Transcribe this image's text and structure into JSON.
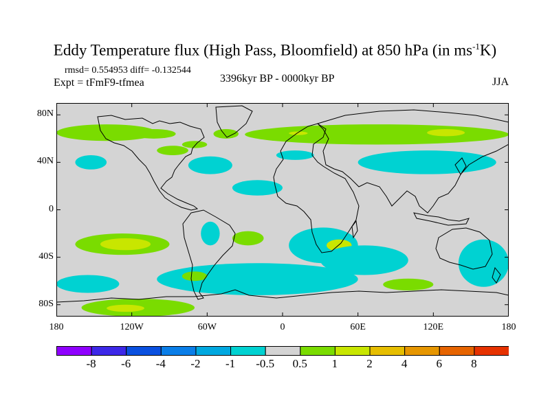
{
  "figure": {
    "title_main": "Eddy Temperature flux (High Pass, Bloomfield) at 850 hPa (in ms",
    "title_sup": "-1",
    "title_end": "K)",
    "stats": "rmsd= 0.554953 diff= -0.132544",
    "experiment": "Expt = tFmF9-tfmea",
    "period": "3396kyr BP - 0000kyr BP",
    "season": "JJA"
  },
  "map": {
    "projection": "cylindrical-equidistant",
    "lon_range": [
      -180,
      180
    ],
    "lat_range": [
      -90,
      90
    ],
    "background_color": "#d4d4d4",
    "coastline_color": "#000000",
    "x_ticks": [
      {
        "lon": -180,
        "label": "180"
      },
      {
        "lon": -120,
        "label": "120W"
      },
      {
        "lon": -60,
        "label": "60W"
      },
      {
        "lon": 0,
        "label": "0"
      },
      {
        "lon": 60,
        "label": "60E"
      },
      {
        "lon": 120,
        "label": "120E"
      },
      {
        "lon": 180,
        "label": "180"
      }
    ],
    "y_ticks": [
      {
        "lat": 80,
        "label": "80N"
      },
      {
        "lat": 40,
        "label": "40N"
      },
      {
        "lat": 0,
        "label": "0"
      },
      {
        "lat": -40,
        "label": "40S"
      },
      {
        "lat": -80,
        "label": "80S"
      }
    ],
    "anomaly_regions": [
      {
        "name": "n-pacific-arctic-band",
        "lon": [
          -180,
          -100
        ],
        "lat": [
          58,
          72
        ],
        "level": 1
      },
      {
        "name": "hudson-green-patch",
        "lon": [
          -120,
          -85
        ],
        "lat": [
          60,
          68
        ],
        "level": 1
      },
      {
        "name": "labrador-green-patch",
        "lon": [
          -80,
          -60
        ],
        "lat": [
          52,
          58
        ],
        "level": 1
      },
      {
        "name": "greenland-green-patch",
        "lon": [
          -55,
          -35
        ],
        "lat": [
          60,
          68
        ],
        "level": 1
      },
      {
        "name": "east-canada-green-patch",
        "lon": [
          -100,
          -75
        ],
        "lat": [
          46,
          54
        ],
        "level": 1
      },
      {
        "name": "eurasia-green-band",
        "lon": [
          -30,
          180
        ],
        "lat": [
          55,
          72
        ],
        "level": 1
      },
      {
        "name": "siberia-yellow-core",
        "lon": [
          115,
          145
        ],
        "lat": [
          62,
          68
        ],
        "level": 2
      },
      {
        "name": "scandinavia-yellow-spot",
        "lon": [
          5,
          20
        ],
        "lat": [
          63,
          66
        ],
        "level": 2
      },
      {
        "name": "n-pacific-blue",
        "lon": [
          -165,
          -140
        ],
        "lat": [
          34,
          46
        ],
        "level": -1
      },
      {
        "name": "n-atlantic-blue",
        "lon": [
          -75,
          -40
        ],
        "lat": [
          30,
          45
        ],
        "level": -1
      },
      {
        "name": "europe-blue",
        "lon": [
          -5,
          25
        ],
        "lat": [
          42,
          50
        ],
        "level": -1
      },
      {
        "name": "asia-blue",
        "lon": [
          60,
          170
        ],
        "lat": [
          30,
          50
        ],
        "level": -1
      },
      {
        "name": "atlantic-subtropic-blue",
        "lon": [
          -40,
          0
        ],
        "lat": [
          12,
          25
        ],
        "level": -1
      },
      {
        "name": "s-pacific-green",
        "lon": [
          -165,
          -90
        ],
        "lat": [
          -38,
          -20
        ],
        "level": 1
      },
      {
        "name": "s-pacific-yellow",
        "lon": [
          -145,
          -105
        ],
        "lat": [
          -34,
          -24
        ],
        "level": 2
      },
      {
        "name": "s-america-blue",
        "lon": [
          -65,
          -50
        ],
        "lat": [
          -30,
          -10
        ],
        "level": -1
      },
      {
        "name": "s-america-green",
        "lon": [
          -40,
          -15
        ],
        "lat": [
          -30,
          -18
        ],
        "level": 1
      },
      {
        "name": "s-africa-blue",
        "lon": [
          5,
          60
        ],
        "lat": [
          -45,
          -15
        ],
        "level": -1
      },
      {
        "name": "s-africa-yellow",
        "lon": [
          35,
          55
        ],
        "lat": [
          -35,
          -25
        ],
        "level": 2
      },
      {
        "name": "s-indian-blue",
        "lon": [
          30,
          100
        ],
        "lat": [
          -55,
          -30
        ],
        "level": -1
      },
      {
        "name": "southern-ocean-blue",
        "lon": [
          -100,
          60
        ],
        "lat": [
          -72,
          -45
        ],
        "level": -1
      },
      {
        "name": "south-pacific-ocean-blue",
        "lon": [
          -180,
          -130
        ],
        "lat": [
          -70,
          -55
        ],
        "level": -1
      },
      {
        "name": "tasman-blue",
        "lon": [
          140,
          180
        ],
        "lat": [
          -65,
          -25
        ],
        "level": -1
      },
      {
        "name": "indian-sw-green",
        "lon": [
          80,
          120
        ],
        "lat": [
          -68,
          -58
        ],
        "level": 1
      },
      {
        "name": "antarctic-green",
        "lon": [
          -160,
          -70
        ],
        "lat": [
          -90,
          -75
        ],
        "level": 1
      },
      {
        "name": "antarctic-yellow",
        "lon": [
          -140,
          -110
        ],
        "lat": [
          -86,
          -80
        ],
        "level": 2
      },
      {
        "name": "se-pacific-green",
        "lon": [
          -80,
          -60
        ],
        "lat": [
          -60,
          -52
        ],
        "level": 1
      }
    ]
  },
  "colorbar": {
    "colors": [
      "#8f00ff",
      "#3d28e8",
      "#0a50e0",
      "#0a7ee8",
      "#00a8e0",
      "#00d2d2",
      "#d4d4d4",
      "#7adc00",
      "#c8e600",
      "#e6be00",
      "#e69600",
      "#e66400",
      "#e63200"
    ],
    "labels": [
      "-8",
      "-6",
      "-4",
      "-2",
      "-1",
      "-0.5",
      "0.5",
      "1",
      "2",
      "4",
      "6",
      "8"
    ]
  }
}
